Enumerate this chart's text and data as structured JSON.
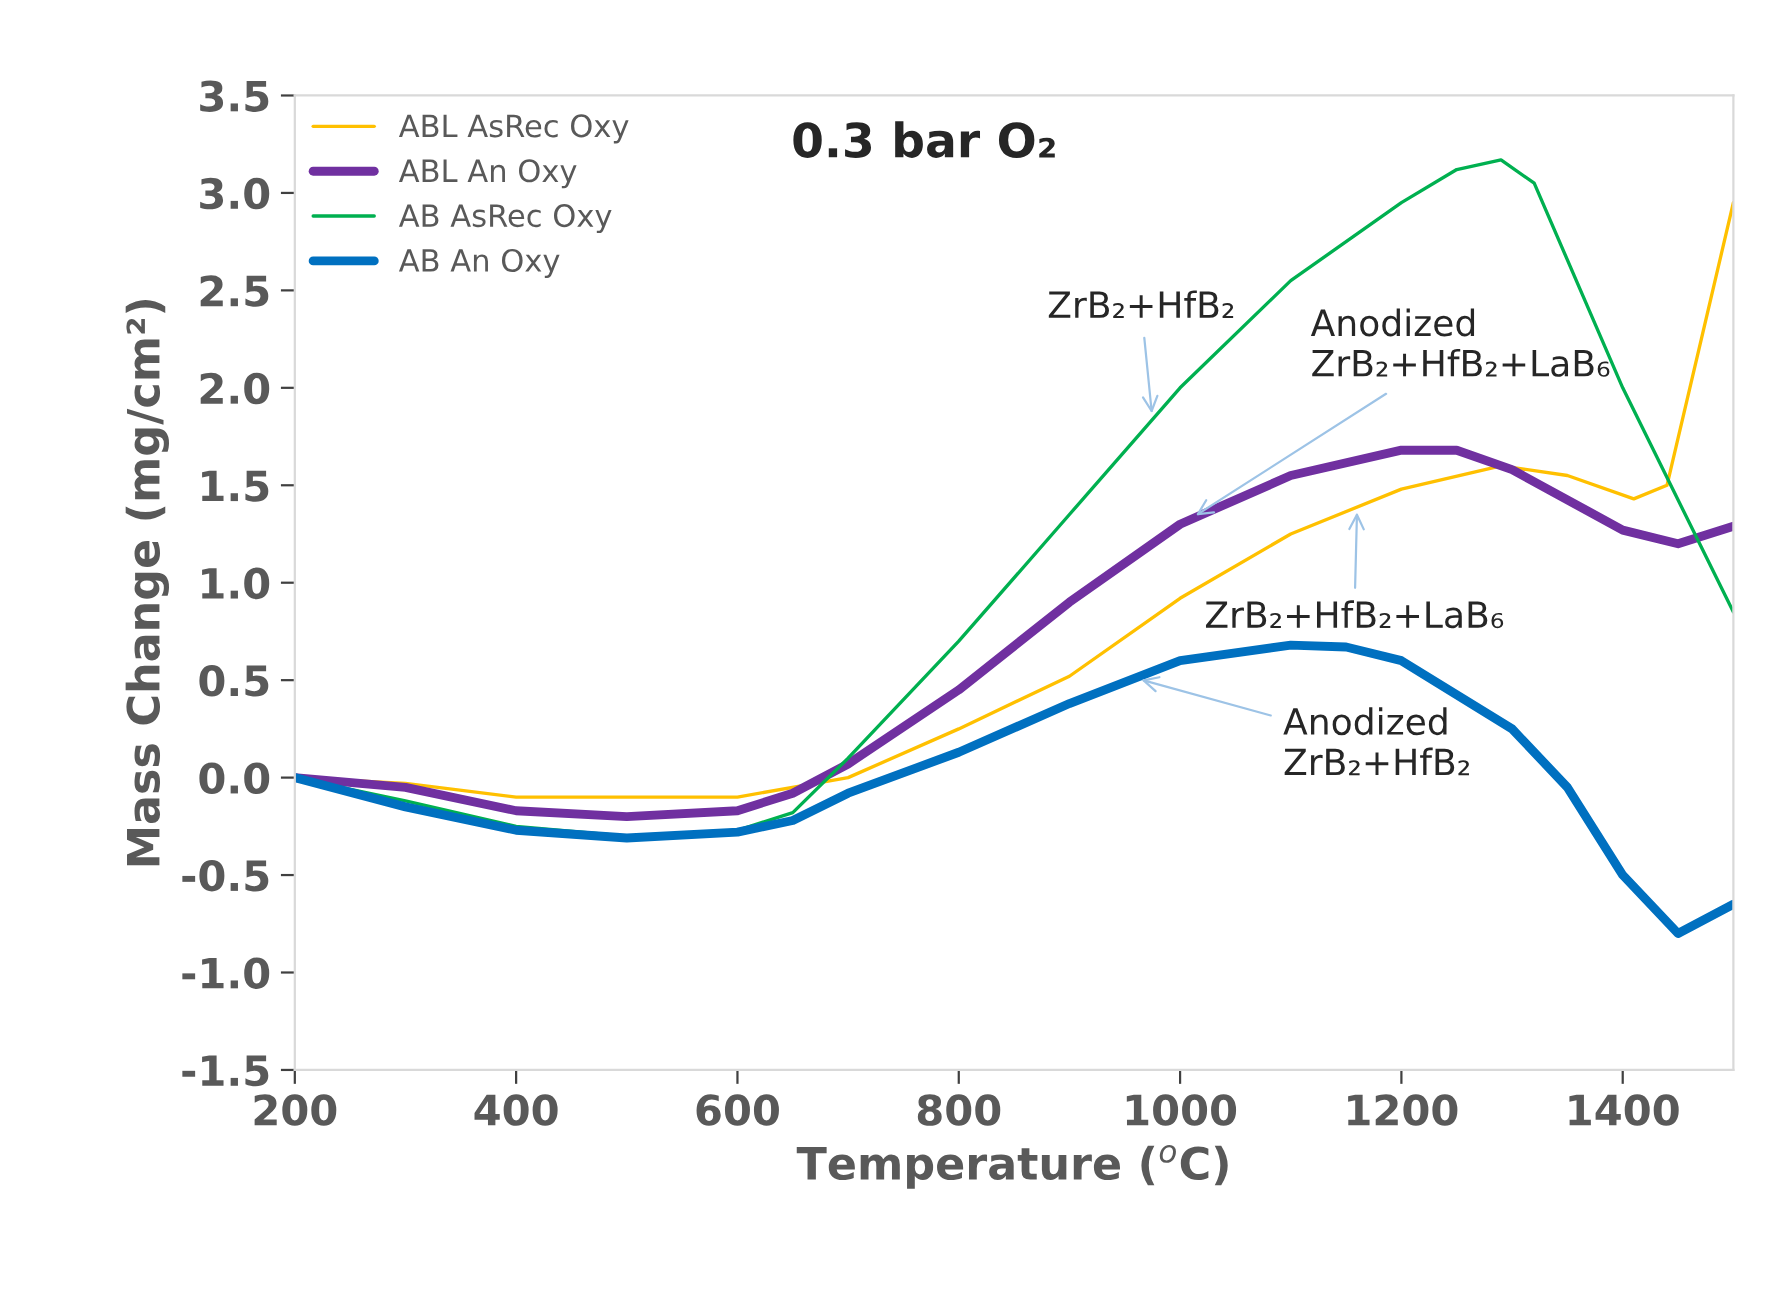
{
  "chart_data": {
    "type": "line",
    "title": "0.3 bar O₂",
    "xlabel": "Temperature ($^{o}$C)",
    "ylabel": "Mass Change (mg/cm²)",
    "xlim": [
      200,
      1500
    ],
    "xticks": [
      200,
      400,
      600,
      800,
      1000,
      1200,
      1400
    ],
    "ylim": [
      -1.5,
      3.5
    ],
    "yticks": [
      -1.5,
      {
        "value": -1,
        "label": "-1.0"
      },
      -0.5,
      {
        "value": 0,
        "label": "0.0"
      },
      0.5,
      {
        "value": 1,
        "label": "1.0"
      },
      1.5,
      {
        "value": 2,
        "label": "2.0"
      },
      2.5,
      {
        "value": 3,
        "label": "3.0"
      },
      3.5
    ],
    "grid": false,
    "legend": "top left",
    "marker": "none",
    "line_style": "solid",
    "series": [
      {
        "name": "ABL AsRec Oxy",
        "color": "#ffc000",
        "x": [
          200,
          300,
          400,
          500,
          600,
          700,
          800,
          900,
          1000,
          1100,
          1200,
          1290,
          1350,
          1410,
          1440,
          1500
        ],
        "values": [
          0,
          -0.03,
          -0.1,
          -0.1,
          -0.1,
          0.0,
          0.25,
          0.52,
          0.92,
          1.25,
          1.48,
          1.6,
          1.55,
          1.43,
          1.5,
          2.95
        ]
      },
      {
        "name": "ABL An Oxy",
        "color": "#7030a0",
        "x": [
          200,
          300,
          400,
          500,
          600,
          650,
          700,
          800,
          900,
          1000,
          1100,
          1200,
          1250,
          1300,
          1400,
          1450,
          1500
        ],
        "values": [
          0,
          -0.05,
          -0.17,
          -0.2,
          -0.17,
          -0.08,
          0.07,
          0.45,
          0.9,
          1.3,
          1.55,
          1.68,
          1.68,
          1.58,
          1.27,
          1.2,
          1.29
        ]
      },
      {
        "name": "AB AsRec Oxy",
        "color": "#00b050",
        "x": [
          200,
          300,
          400,
          500,
          600,
          650,
          700,
          800,
          900,
          1000,
          1100,
          1200,
          1250,
          1290,
          1320,
          1400,
          1500
        ],
        "values": [
          0,
          -0.12,
          -0.25,
          -0.3,
          -0.27,
          -0.18,
          0.1,
          0.7,
          1.35,
          2.0,
          2.55,
          2.95,
          3.12,
          3.17,
          3.05,
          2.0,
          0.85
        ]
      },
      {
        "name": "AB An Oxy",
        "color": "#0070c0",
        "x": [
          200,
          300,
          400,
          500,
          600,
          650,
          700,
          800,
          900,
          1000,
          1100,
          1150,
          1200,
          1300,
          1350,
          1400,
          1450,
          1500
        ],
        "values": [
          0,
          -0.15,
          -0.27,
          -0.31,
          -0.28,
          -0.22,
          -0.08,
          0.13,
          0.38,
          0.6,
          0.68,
          0.67,
          0.6,
          0.25,
          -0.05,
          -0.5,
          -0.8,
          -0.65
        ]
      }
    ],
    "annotations": [
      {
        "text": "ZrB₂+HfB₂",
        "x": 975,
        "y": 1.84
      },
      {
        "text": "Anodized\nZrB₂+HfB₂+LaB₆",
        "x": 1010,
        "y": 1.33
      },
      {
        "text": "ZrB₂+HfB₂+LaB₆",
        "x": 1160,
        "y": 1.39
      },
      {
        "text": "Anodized\nZrB₂+HfB₂",
        "x": 960,
        "y": 0.51
      }
    ]
  }
}
